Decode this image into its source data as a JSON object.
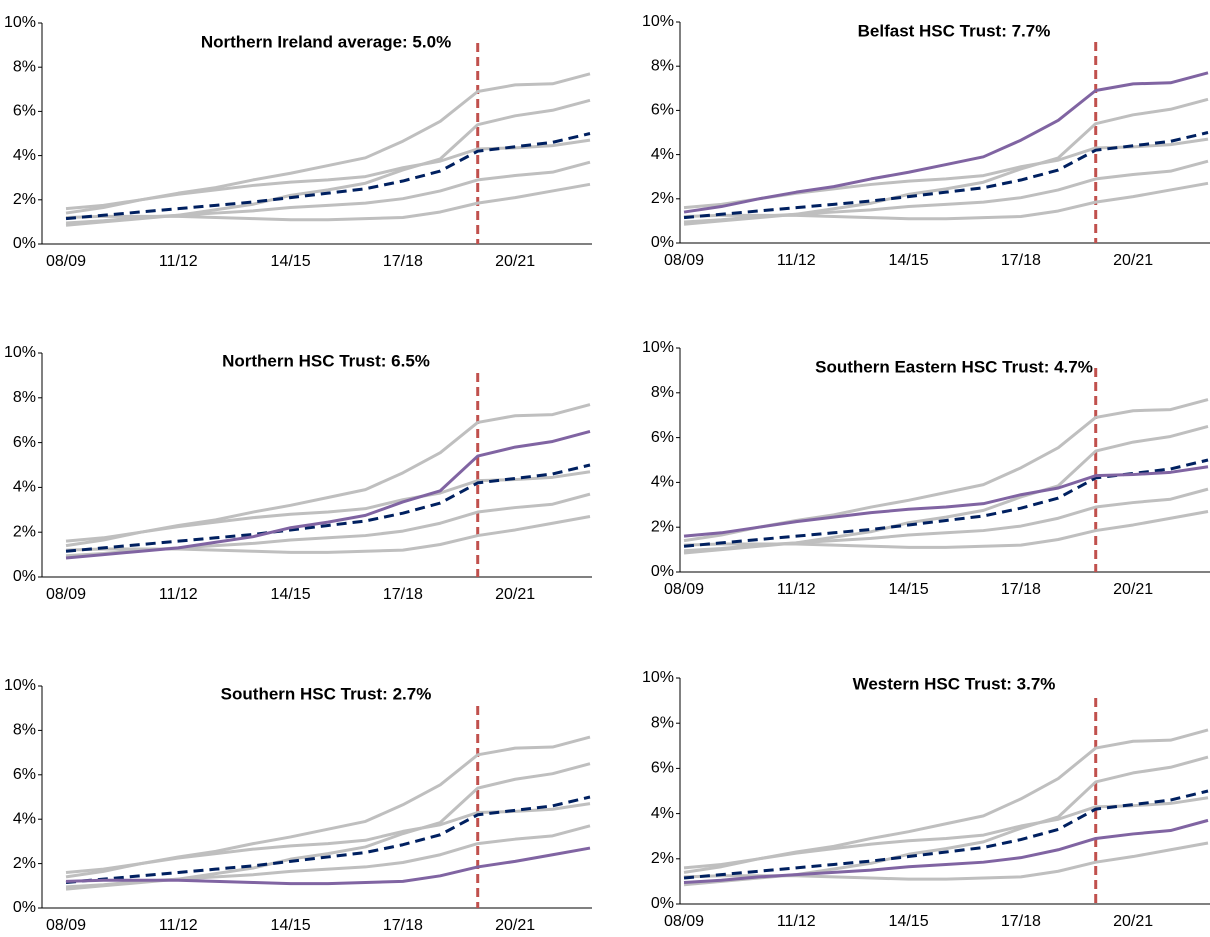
{
  "chart_data": [
    {
      "type": "line",
      "title": "Northern Ireland average: 5.0%",
      "categories": [
        "08/09",
        null,
        null,
        "11/12",
        null,
        null,
        "14/15",
        null,
        null,
        "17/18",
        null,
        null,
        "20/21",
        null,
        null
      ],
      "ylim": [
        0,
        10
      ],
      "yticks": [
        {
          "value": 0,
          "label": "0%"
        },
        {
          "value": 2,
          "label": "2%"
        },
        {
          "value": 4,
          "label": "4%"
        },
        {
          "value": 6,
          "label": "6%"
        },
        {
          "value": 8,
          "label": "8%"
        },
        {
          "value": 10,
          "label": "10%"
        }
      ],
      "marker_line": {
        "category_index": 11,
        "color": "#c0504d"
      },
      "series": [
        {
          "color": "#bfbfbf",
          "values": [
            1.4,
            1.65,
            2.0,
            2.3,
            2.55,
            2.9,
            3.2,
            3.55,
            3.9,
            4.65,
            5.55,
            6.9,
            7.2,
            7.25,
            7.7
          ]
        },
        {
          "color": "#bfbfbf",
          "values": [
            0.85,
            1.0,
            1.15,
            1.3,
            1.55,
            1.8,
            2.2,
            2.45,
            2.75,
            3.35,
            3.85,
            5.4,
            5.8,
            6.05,
            6.5
          ]
        },
        {
          "color": "#bfbfbf",
          "values": [
            1.6,
            1.75,
            2.0,
            2.25,
            2.45,
            2.65,
            2.8,
            2.9,
            3.05,
            3.45,
            3.75,
            4.3,
            4.35,
            4.45,
            4.7
          ]
        },
        {
          "color": "#bfbfbf",
          "values": [
            1.2,
            1.25,
            1.25,
            1.25,
            1.2,
            1.15,
            1.1,
            1.1,
            1.15,
            1.2,
            1.45,
            1.85,
            2.1,
            2.4,
            2.7
          ]
        },
        {
          "color": "#bfbfbf",
          "values": [
            0.95,
            1.05,
            1.2,
            1.3,
            1.4,
            1.5,
            1.65,
            1.75,
            1.85,
            2.05,
            2.4,
            2.9,
            3.1,
            3.25,
            3.7
          ]
        },
        {
          "color": "#002060",
          "dashed": true,
          "values": [
            1.15,
            1.3,
            1.45,
            1.6,
            1.75,
            1.9,
            2.1,
            2.3,
            2.5,
            2.85,
            3.3,
            4.2,
            4.4,
            4.6,
            5.0
          ]
        }
      ]
    },
    {
      "type": "line",
      "title": "Belfast HSC Trust: 7.7%",
      "categories": [
        "08/09",
        null,
        null,
        "11/12",
        null,
        null,
        "14/15",
        null,
        null,
        "17/18",
        null,
        null,
        "20/21",
        null,
        null
      ],
      "ylim": [
        0,
        10
      ],
      "yticks": [
        {
          "value": 0,
          "label": "0%"
        },
        {
          "value": 2,
          "label": "2%"
        },
        {
          "value": 4,
          "label": "4%"
        },
        {
          "value": 6,
          "label": "6%"
        },
        {
          "value": 8,
          "label": "8%"
        },
        {
          "value": 10,
          "label": "10%"
        }
      ],
      "marker_line": {
        "category_index": 11,
        "color": "#c0504d"
      },
      "series": [
        {
          "color": "#bfbfbf",
          "values": [
            0.85,
            1.0,
            1.15,
            1.3,
            1.55,
            1.8,
            2.2,
            2.45,
            2.75,
            3.35,
            3.85,
            5.4,
            5.8,
            6.05,
            6.5
          ]
        },
        {
          "color": "#bfbfbf",
          "values": [
            1.6,
            1.75,
            2.0,
            2.25,
            2.45,
            2.65,
            2.8,
            2.9,
            3.05,
            3.45,
            3.75,
            4.3,
            4.35,
            4.45,
            4.7
          ]
        },
        {
          "color": "#bfbfbf",
          "values": [
            1.2,
            1.25,
            1.25,
            1.25,
            1.2,
            1.15,
            1.1,
            1.1,
            1.15,
            1.2,
            1.45,
            1.85,
            2.1,
            2.4,
            2.7
          ]
        },
        {
          "color": "#bfbfbf",
          "values": [
            0.95,
            1.05,
            1.2,
            1.3,
            1.4,
            1.5,
            1.65,
            1.75,
            1.85,
            2.05,
            2.4,
            2.9,
            3.1,
            3.25,
            3.7
          ]
        },
        {
          "color": "#002060",
          "dashed": true,
          "values": [
            1.15,
            1.3,
            1.45,
            1.6,
            1.75,
            1.9,
            2.1,
            2.3,
            2.5,
            2.85,
            3.3,
            4.2,
            4.4,
            4.6,
            5.0
          ]
        },
        {
          "color": "#8064a2",
          "values": [
            1.4,
            1.65,
            2.0,
            2.3,
            2.55,
            2.9,
            3.2,
            3.55,
            3.9,
            4.65,
            5.55,
            6.9,
            7.2,
            7.25,
            7.7
          ]
        }
      ]
    },
    {
      "type": "line",
      "title": "Northern HSC Trust: 6.5%",
      "categories": [
        "08/09",
        null,
        null,
        "11/12",
        null,
        null,
        "14/15",
        null,
        null,
        "17/18",
        null,
        null,
        "20/21",
        null,
        null
      ],
      "ylim": [
        0,
        10
      ],
      "yticks": [
        {
          "value": 0,
          "label": "0%"
        },
        {
          "value": 2,
          "label": "2%"
        },
        {
          "value": 4,
          "label": "4%"
        },
        {
          "value": 6,
          "label": "6%"
        },
        {
          "value": 8,
          "label": "8%"
        },
        {
          "value": 10,
          "label": "10%"
        }
      ],
      "marker_line": {
        "category_index": 11,
        "color": "#c0504d"
      },
      "series": [
        {
          "color": "#bfbfbf",
          "values": [
            1.4,
            1.65,
            2.0,
            2.3,
            2.55,
            2.9,
            3.2,
            3.55,
            3.9,
            4.65,
            5.55,
            6.9,
            7.2,
            7.25,
            7.7
          ]
        },
        {
          "color": "#bfbfbf",
          "values": [
            1.6,
            1.75,
            2.0,
            2.25,
            2.45,
            2.65,
            2.8,
            2.9,
            3.05,
            3.45,
            3.75,
            4.3,
            4.35,
            4.45,
            4.7
          ]
        },
        {
          "color": "#bfbfbf",
          "values": [
            1.2,
            1.25,
            1.25,
            1.25,
            1.2,
            1.15,
            1.1,
            1.1,
            1.15,
            1.2,
            1.45,
            1.85,
            2.1,
            2.4,
            2.7
          ]
        },
        {
          "color": "#bfbfbf",
          "values": [
            0.95,
            1.05,
            1.2,
            1.3,
            1.4,
            1.5,
            1.65,
            1.75,
            1.85,
            2.05,
            2.4,
            2.9,
            3.1,
            3.25,
            3.7
          ]
        },
        {
          "color": "#002060",
          "dashed": true,
          "values": [
            1.15,
            1.3,
            1.45,
            1.6,
            1.75,
            1.9,
            2.1,
            2.3,
            2.5,
            2.85,
            3.3,
            4.2,
            4.4,
            4.6,
            5.0
          ]
        },
        {
          "color": "#8064a2",
          "values": [
            0.85,
            1.0,
            1.15,
            1.3,
            1.55,
            1.8,
            2.2,
            2.45,
            2.75,
            3.35,
            3.85,
            5.4,
            5.8,
            6.05,
            6.5
          ]
        }
      ]
    },
    {
      "type": "line",
      "title": "Southern Eastern HSC Trust: 4.7%",
      "categories": [
        "08/09",
        null,
        null,
        "11/12",
        null,
        null,
        "14/15",
        null,
        null,
        "17/18",
        null,
        null,
        "20/21",
        null,
        null
      ],
      "ylim": [
        0,
        10
      ],
      "yticks": [
        {
          "value": 0,
          "label": "0%"
        },
        {
          "value": 2,
          "label": "2%"
        },
        {
          "value": 4,
          "label": "4%"
        },
        {
          "value": 6,
          "label": "6%"
        },
        {
          "value": 8,
          "label": "8%"
        },
        {
          "value": 10,
          "label": "10%"
        }
      ],
      "marker_line": {
        "category_index": 11,
        "color": "#c0504d"
      },
      "series": [
        {
          "color": "#bfbfbf",
          "values": [
            1.4,
            1.65,
            2.0,
            2.3,
            2.55,
            2.9,
            3.2,
            3.55,
            3.9,
            4.65,
            5.55,
            6.9,
            7.2,
            7.25,
            7.7
          ]
        },
        {
          "color": "#bfbfbf",
          "values": [
            0.85,
            1.0,
            1.15,
            1.3,
            1.55,
            1.8,
            2.2,
            2.45,
            2.75,
            3.35,
            3.85,
            5.4,
            5.8,
            6.05,
            6.5
          ]
        },
        {
          "color": "#bfbfbf",
          "values": [
            1.2,
            1.25,
            1.25,
            1.25,
            1.2,
            1.15,
            1.1,
            1.1,
            1.15,
            1.2,
            1.45,
            1.85,
            2.1,
            2.4,
            2.7
          ]
        },
        {
          "color": "#bfbfbf",
          "values": [
            0.95,
            1.05,
            1.2,
            1.3,
            1.4,
            1.5,
            1.65,
            1.75,
            1.85,
            2.05,
            2.4,
            2.9,
            3.1,
            3.25,
            3.7
          ]
        },
        {
          "color": "#002060",
          "dashed": true,
          "values": [
            1.15,
            1.3,
            1.45,
            1.6,
            1.75,
            1.9,
            2.1,
            2.3,
            2.5,
            2.85,
            3.3,
            4.2,
            4.4,
            4.6,
            5.0
          ]
        },
        {
          "color": "#8064a2",
          "values": [
            1.6,
            1.75,
            2.0,
            2.25,
            2.45,
            2.65,
            2.8,
            2.9,
            3.05,
            3.45,
            3.75,
            4.3,
            4.35,
            4.45,
            4.7
          ]
        }
      ]
    },
    {
      "type": "line",
      "title": "Southern HSC Trust: 2.7%",
      "categories": [
        "08/09",
        null,
        null,
        "11/12",
        null,
        null,
        "14/15",
        null,
        null,
        "17/18",
        null,
        null,
        "20/21",
        null,
        null
      ],
      "ylim": [
        0,
        10
      ],
      "yticks": [
        {
          "value": 0,
          "label": "0%"
        },
        {
          "value": 2,
          "label": "2%"
        },
        {
          "value": 4,
          "label": "4%"
        },
        {
          "value": 6,
          "label": "6%"
        },
        {
          "value": 8,
          "label": "8%"
        },
        {
          "value": 10,
          "label": "10%"
        }
      ],
      "marker_line": {
        "category_index": 11,
        "color": "#c0504d"
      },
      "series": [
        {
          "color": "#bfbfbf",
          "values": [
            1.4,
            1.65,
            2.0,
            2.3,
            2.55,
            2.9,
            3.2,
            3.55,
            3.9,
            4.65,
            5.55,
            6.9,
            7.2,
            7.25,
            7.7
          ]
        },
        {
          "color": "#bfbfbf",
          "values": [
            0.85,
            1.0,
            1.15,
            1.3,
            1.55,
            1.8,
            2.2,
            2.45,
            2.75,
            3.35,
            3.85,
            5.4,
            5.8,
            6.05,
            6.5
          ]
        },
        {
          "color": "#bfbfbf",
          "values": [
            1.6,
            1.75,
            2.0,
            2.25,
            2.45,
            2.65,
            2.8,
            2.9,
            3.05,
            3.45,
            3.75,
            4.3,
            4.35,
            4.45,
            4.7
          ]
        },
        {
          "color": "#bfbfbf",
          "values": [
            0.95,
            1.05,
            1.2,
            1.3,
            1.4,
            1.5,
            1.65,
            1.75,
            1.85,
            2.05,
            2.4,
            2.9,
            3.1,
            3.25,
            3.7
          ]
        },
        {
          "color": "#002060",
          "dashed": true,
          "values": [
            1.15,
            1.3,
            1.45,
            1.6,
            1.75,
            1.9,
            2.1,
            2.3,
            2.5,
            2.85,
            3.3,
            4.2,
            4.4,
            4.6,
            5.0
          ]
        },
        {
          "color": "#8064a2",
          "values": [
            1.2,
            1.25,
            1.25,
            1.25,
            1.2,
            1.15,
            1.1,
            1.1,
            1.15,
            1.2,
            1.45,
            1.85,
            2.1,
            2.4,
            2.7
          ]
        }
      ]
    },
    {
      "type": "line",
      "title": "Western HSC Trust: 3.7%",
      "categories": [
        "08/09",
        null,
        null,
        "11/12",
        null,
        null,
        "14/15",
        null,
        null,
        "17/18",
        null,
        null,
        "20/21",
        null,
        null
      ],
      "ylim": [
        0,
        10
      ],
      "yticks": [
        {
          "value": 0,
          "label": "0%"
        },
        {
          "value": 2,
          "label": "2%"
        },
        {
          "value": 4,
          "label": "4%"
        },
        {
          "value": 6,
          "label": "6%"
        },
        {
          "value": 8,
          "label": "8%"
        },
        {
          "value": 10,
          "label": "10%"
        }
      ],
      "marker_line": {
        "category_index": 11,
        "color": "#c0504d"
      },
      "series": [
        {
          "color": "#bfbfbf",
          "values": [
            1.4,
            1.65,
            2.0,
            2.3,
            2.55,
            2.9,
            3.2,
            3.55,
            3.9,
            4.65,
            5.55,
            6.9,
            7.2,
            7.25,
            7.7
          ]
        },
        {
          "color": "#bfbfbf",
          "values": [
            0.85,
            1.0,
            1.15,
            1.3,
            1.55,
            1.8,
            2.2,
            2.45,
            2.75,
            3.35,
            3.85,
            5.4,
            5.8,
            6.05,
            6.5
          ]
        },
        {
          "color": "#bfbfbf",
          "values": [
            1.6,
            1.75,
            2.0,
            2.25,
            2.45,
            2.65,
            2.8,
            2.9,
            3.05,
            3.45,
            3.75,
            4.3,
            4.35,
            4.45,
            4.7
          ]
        },
        {
          "color": "#bfbfbf",
          "values": [
            1.2,
            1.25,
            1.25,
            1.25,
            1.2,
            1.15,
            1.1,
            1.1,
            1.15,
            1.2,
            1.45,
            1.85,
            2.1,
            2.4,
            2.7
          ]
        },
        {
          "color": "#002060",
          "dashed": true,
          "values": [
            1.15,
            1.3,
            1.45,
            1.6,
            1.75,
            1.9,
            2.1,
            2.3,
            2.5,
            2.85,
            3.3,
            4.2,
            4.4,
            4.6,
            5.0
          ]
        },
        {
          "color": "#8064a2",
          "values": [
            0.95,
            1.05,
            1.2,
            1.3,
            1.4,
            1.5,
            1.65,
            1.75,
            1.85,
            2.05,
            2.4,
            2.9,
            3.1,
            3.25,
            3.7
          ]
        }
      ]
    }
  ]
}
